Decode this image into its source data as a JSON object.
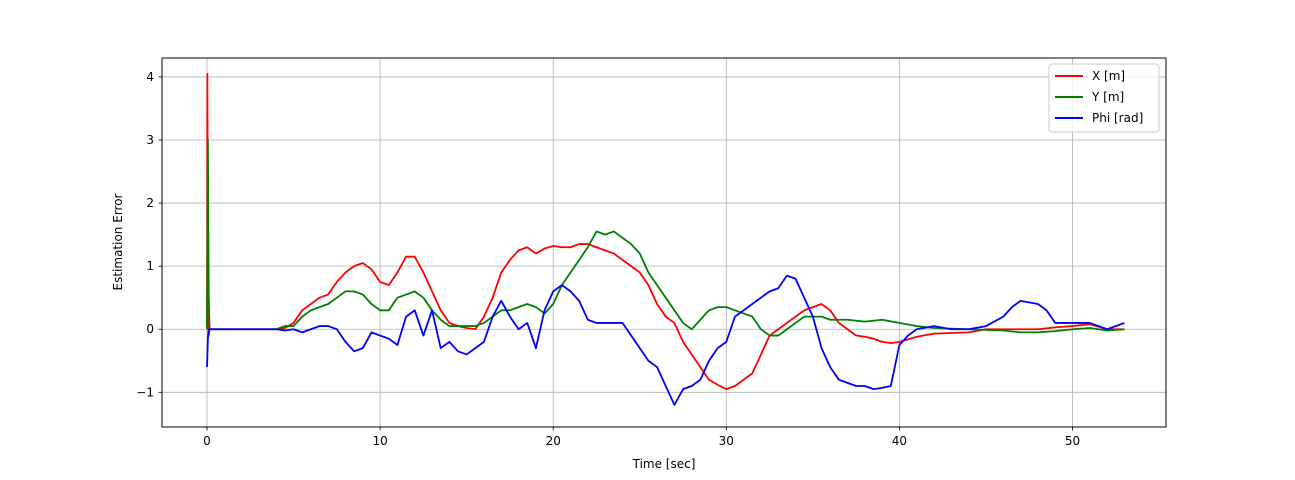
{
  "chart_data": {
    "type": "line",
    "title": "",
    "xlabel": "Time [sec]",
    "ylabel": "Estimation Error",
    "xlim": [
      -2.6,
      55.4
    ],
    "ylim": [
      -1.55,
      4.3
    ],
    "xticks": [
      0,
      10,
      20,
      30,
      40,
      50
    ],
    "yticks": [
      -1,
      0,
      1,
      2,
      3,
      4
    ],
    "ytick_labels": [
      "−1",
      "0",
      "1",
      "2",
      "3",
      "4"
    ],
    "grid": true,
    "legend_position": "top-right",
    "series": [
      {
        "name": "X [m]",
        "color": "#ff0000",
        "points": [
          [
            0,
            0
          ],
          [
            0.02,
            4.05
          ],
          [
            0.06,
            1.0
          ],
          [
            0.1,
            -0.1
          ],
          [
            0.15,
            0
          ],
          [
            4.0,
            0
          ],
          [
            4.5,
            0.02
          ],
          [
            5.0,
            0.1
          ],
          [
            5.5,
            0.3
          ],
          [
            6.0,
            0.4
          ],
          [
            6.5,
            0.5
          ],
          [
            7.0,
            0.55
          ],
          [
            7.5,
            0.75
          ],
          [
            8.0,
            0.9
          ],
          [
            8.5,
            1.0
          ],
          [
            9.0,
            1.05
          ],
          [
            9.5,
            0.95
          ],
          [
            10.0,
            0.75
          ],
          [
            10.5,
            0.7
          ],
          [
            11.0,
            0.9
          ],
          [
            11.5,
            1.15
          ],
          [
            12.0,
            1.15
          ],
          [
            12.5,
            0.9
          ],
          [
            13.0,
            0.6
          ],
          [
            13.5,
            0.3
          ],
          [
            14.0,
            0.1
          ],
          [
            14.5,
            0.05
          ],
          [
            15.0,
            0.02
          ],
          [
            15.5,
            0.0
          ],
          [
            16.0,
            0.2
          ],
          [
            16.5,
            0.5
          ],
          [
            17.0,
            0.9
          ],
          [
            17.5,
            1.1
          ],
          [
            18.0,
            1.25
          ],
          [
            18.5,
            1.3
          ],
          [
            19.0,
            1.2
          ],
          [
            19.5,
            1.28
          ],
          [
            20.0,
            1.32
          ],
          [
            20.5,
            1.3
          ],
          [
            21.0,
            1.3
          ],
          [
            21.5,
            1.35
          ],
          [
            22.0,
            1.35
          ],
          [
            22.5,
            1.3
          ],
          [
            23.0,
            1.25
          ],
          [
            23.5,
            1.2
          ],
          [
            24.0,
            1.1
          ],
          [
            24.5,
            1.0
          ],
          [
            25.0,
            0.9
          ],
          [
            25.5,
            0.7
          ],
          [
            26.0,
            0.4
          ],
          [
            26.5,
            0.2
          ],
          [
            27.0,
            0.1
          ],
          [
            27.5,
            -0.2
          ],
          [
            28.0,
            -0.4
          ],
          [
            28.5,
            -0.6
          ],
          [
            29.0,
            -0.8
          ],
          [
            29.5,
            -0.88
          ],
          [
            30.0,
            -0.95
          ],
          [
            30.5,
            -0.9
          ],
          [
            31.0,
            -0.8
          ],
          [
            31.5,
            -0.7
          ],
          [
            32.0,
            -0.4
          ],
          [
            32.5,
            -0.1
          ],
          [
            33.0,
            0.0
          ],
          [
            33.5,
            0.1
          ],
          [
            34.0,
            0.2
          ],
          [
            34.5,
            0.3
          ],
          [
            35.0,
            0.35
          ],
          [
            35.5,
            0.4
          ],
          [
            36.0,
            0.3
          ],
          [
            36.5,
            0.1
          ],
          [
            37.0,
            0.0
          ],
          [
            37.5,
            -0.1
          ],
          [
            38.0,
            -0.12
          ],
          [
            38.5,
            -0.15
          ],
          [
            39.0,
            -0.2
          ],
          [
            39.5,
            -0.22
          ],
          [
            40.0,
            -0.2
          ],
          [
            41.0,
            -0.12
          ],
          [
            42.0,
            -0.07
          ],
          [
            44.0,
            -0.05
          ],
          [
            45.0,
            0
          ],
          [
            48.0,
            0.0
          ],
          [
            49.0,
            0.03
          ],
          [
            50.0,
            0.05
          ],
          [
            51.0,
            0.08
          ],
          [
            52.0,
            0.0
          ],
          [
            53.0,
            0.0
          ]
        ]
      },
      {
        "name": "Y [m]",
        "color": "#008000",
        "points": [
          [
            0,
            0
          ],
          [
            0.05,
            3.0
          ],
          [
            0.1,
            0.5
          ],
          [
            0.15,
            0
          ],
          [
            4.0,
            0
          ],
          [
            4.5,
            0.05
          ],
          [
            5.0,
            0.05
          ],
          [
            5.5,
            0.2
          ],
          [
            6.0,
            0.3
          ],
          [
            6.5,
            0.35
          ],
          [
            7.0,
            0.4
          ],
          [
            7.5,
            0.5
          ],
          [
            8.0,
            0.6
          ],
          [
            8.5,
            0.6
          ],
          [
            9.0,
            0.55
          ],
          [
            9.5,
            0.4
          ],
          [
            10.0,
            0.3
          ],
          [
            10.5,
            0.3
          ],
          [
            11.0,
            0.5
          ],
          [
            11.5,
            0.55
          ],
          [
            12.0,
            0.6
          ],
          [
            12.5,
            0.5
          ],
          [
            13.0,
            0.3
          ],
          [
            13.5,
            0.15
          ],
          [
            14.0,
            0.05
          ],
          [
            14.5,
            0.05
          ],
          [
            15.0,
            0.05
          ],
          [
            15.5,
            0.05
          ],
          [
            16.0,
            0.1
          ],
          [
            16.5,
            0.2
          ],
          [
            17.0,
            0.3
          ],
          [
            17.5,
            0.3
          ],
          [
            18.0,
            0.35
          ],
          [
            18.5,
            0.4
          ],
          [
            19.0,
            0.35
          ],
          [
            19.5,
            0.25
          ],
          [
            20.0,
            0.4
          ],
          [
            20.5,
            0.7
          ],
          [
            21.0,
            0.9
          ],
          [
            21.5,
            1.1
          ],
          [
            22.0,
            1.3
          ],
          [
            22.5,
            1.55
          ],
          [
            23.0,
            1.5
          ],
          [
            23.5,
            1.55
          ],
          [
            24.0,
            1.45
          ],
          [
            24.5,
            1.35
          ],
          [
            25.0,
            1.2
          ],
          [
            25.5,
            0.9
          ],
          [
            26.0,
            0.7
          ],
          [
            26.5,
            0.5
          ],
          [
            27.0,
            0.3
          ],
          [
            27.5,
            0.1
          ],
          [
            28.0,
            0.0
          ],
          [
            28.5,
            0.15
          ],
          [
            29.0,
            0.3
          ],
          [
            29.5,
            0.35
          ],
          [
            30.0,
            0.35
          ],
          [
            30.5,
            0.3
          ],
          [
            31.0,
            0.25
          ],
          [
            31.5,
            0.2
          ],
          [
            32.0,
            0.0
          ],
          [
            32.5,
            -0.1
          ],
          [
            33.0,
            -0.1
          ],
          [
            33.5,
            0.0
          ],
          [
            34.0,
            0.1
          ],
          [
            34.5,
            0.2
          ],
          [
            35.0,
            0.2
          ],
          [
            35.5,
            0.2
          ],
          [
            36.0,
            0.15
          ],
          [
            37.0,
            0.15
          ],
          [
            38.0,
            0.12
          ],
          [
            39.0,
            0.15
          ],
          [
            40.0,
            0.1
          ],
          [
            41.0,
            0.05
          ],
          [
            42.0,
            0.02
          ],
          [
            44.0,
            0.0
          ],
          [
            46.0,
            -0.02
          ],
          [
            47.0,
            -0.05
          ],
          [
            48.0,
            -0.05
          ],
          [
            49.0,
            -0.03
          ],
          [
            50.0,
            0.0
          ],
          [
            51.0,
            0.02
          ],
          [
            52.0,
            -0.02
          ],
          [
            53.0,
            0.0
          ]
        ]
      },
      {
        "name": "Phi [rad]",
        "color": "#0000ff",
        "points": [
          [
            0,
            -0.6
          ],
          [
            0.05,
            -0.15
          ],
          [
            0.1,
            0
          ],
          [
            4.0,
            0
          ],
          [
            4.5,
            -0.02
          ],
          [
            5.0,
            0.0
          ],
          [
            5.5,
            -0.05
          ],
          [
            6.0,
            0.0
          ],
          [
            6.5,
            0.05
          ],
          [
            7.0,
            0.05
          ],
          [
            7.5,
            0.0
          ],
          [
            8.0,
            -0.2
          ],
          [
            8.5,
            -0.35
          ],
          [
            9.0,
            -0.3
          ],
          [
            9.5,
            -0.05
          ],
          [
            10.0,
            -0.1
          ],
          [
            10.5,
            -0.15
          ],
          [
            11.0,
            -0.25
          ],
          [
            11.5,
            0.2
          ],
          [
            12.0,
            0.3
          ],
          [
            12.5,
            -0.1
          ],
          [
            13.0,
            0.3
          ],
          [
            13.5,
            -0.3
          ],
          [
            14.0,
            -0.2
          ],
          [
            14.5,
            -0.35
          ],
          [
            15.0,
            -0.4
          ],
          [
            15.5,
            -0.3
          ],
          [
            16.0,
            -0.2
          ],
          [
            16.5,
            0.2
          ],
          [
            17.0,
            0.45
          ],
          [
            17.5,
            0.2
          ],
          [
            18.0,
            0.0
          ],
          [
            18.5,
            0.1
          ],
          [
            19.0,
            -0.3
          ],
          [
            19.5,
            0.3
          ],
          [
            20.0,
            0.6
          ],
          [
            20.5,
            0.7
          ],
          [
            21.0,
            0.6
          ],
          [
            21.5,
            0.45
          ],
          [
            22.0,
            0.15
          ],
          [
            22.5,
            0.1
          ],
          [
            23.0,
            0.1
          ],
          [
            23.5,
            0.1
          ],
          [
            24.0,
            0.1
          ],
          [
            24.5,
            -0.1
          ],
          [
            25.0,
            -0.3
          ],
          [
            25.5,
            -0.5
          ],
          [
            26.0,
            -0.6
          ],
          [
            26.5,
            -0.9
          ],
          [
            27.0,
            -1.2
          ],
          [
            27.5,
            -0.95
          ],
          [
            28.0,
            -0.9
          ],
          [
            28.5,
            -0.8
          ],
          [
            29.0,
            -0.5
          ],
          [
            29.5,
            -0.3
          ],
          [
            30.0,
            -0.2
          ],
          [
            30.5,
            0.2
          ],
          [
            31.0,
            0.3
          ],
          [
            31.5,
            0.4
          ],
          [
            32.0,
            0.5
          ],
          [
            32.5,
            0.6
          ],
          [
            33.0,
            0.65
          ],
          [
            33.5,
            0.85
          ],
          [
            34.0,
            0.8
          ],
          [
            34.5,
            0.5
          ],
          [
            35.0,
            0.2
          ],
          [
            35.5,
            -0.3
          ],
          [
            36.0,
            -0.6
          ],
          [
            36.5,
            -0.8
          ],
          [
            37.0,
            -0.85
          ],
          [
            37.5,
            -0.9
          ],
          [
            38.0,
            -0.9
          ],
          [
            38.5,
            -0.95
          ],
          [
            39.0,
            -0.93
          ],
          [
            39.5,
            -0.9
          ],
          [
            40.0,
            -0.25
          ],
          [
            40.5,
            -0.1
          ],
          [
            41.0,
            0.0
          ],
          [
            42.0,
            0.05
          ],
          [
            43.0,
            0.0
          ],
          [
            44.0,
            0.0
          ],
          [
            45.0,
            0.05
          ],
          [
            46.0,
            0.2
          ],
          [
            46.5,
            0.35
          ],
          [
            47.0,
            0.45
          ],
          [
            48.0,
            0.4
          ],
          [
            48.5,
            0.3
          ],
          [
            49.0,
            0.1
          ],
          [
            50.0,
            0.1
          ],
          [
            51.0,
            0.1
          ],
          [
            52.0,
            0.0
          ],
          [
            53.0,
            0.1
          ]
        ]
      }
    ]
  }
}
